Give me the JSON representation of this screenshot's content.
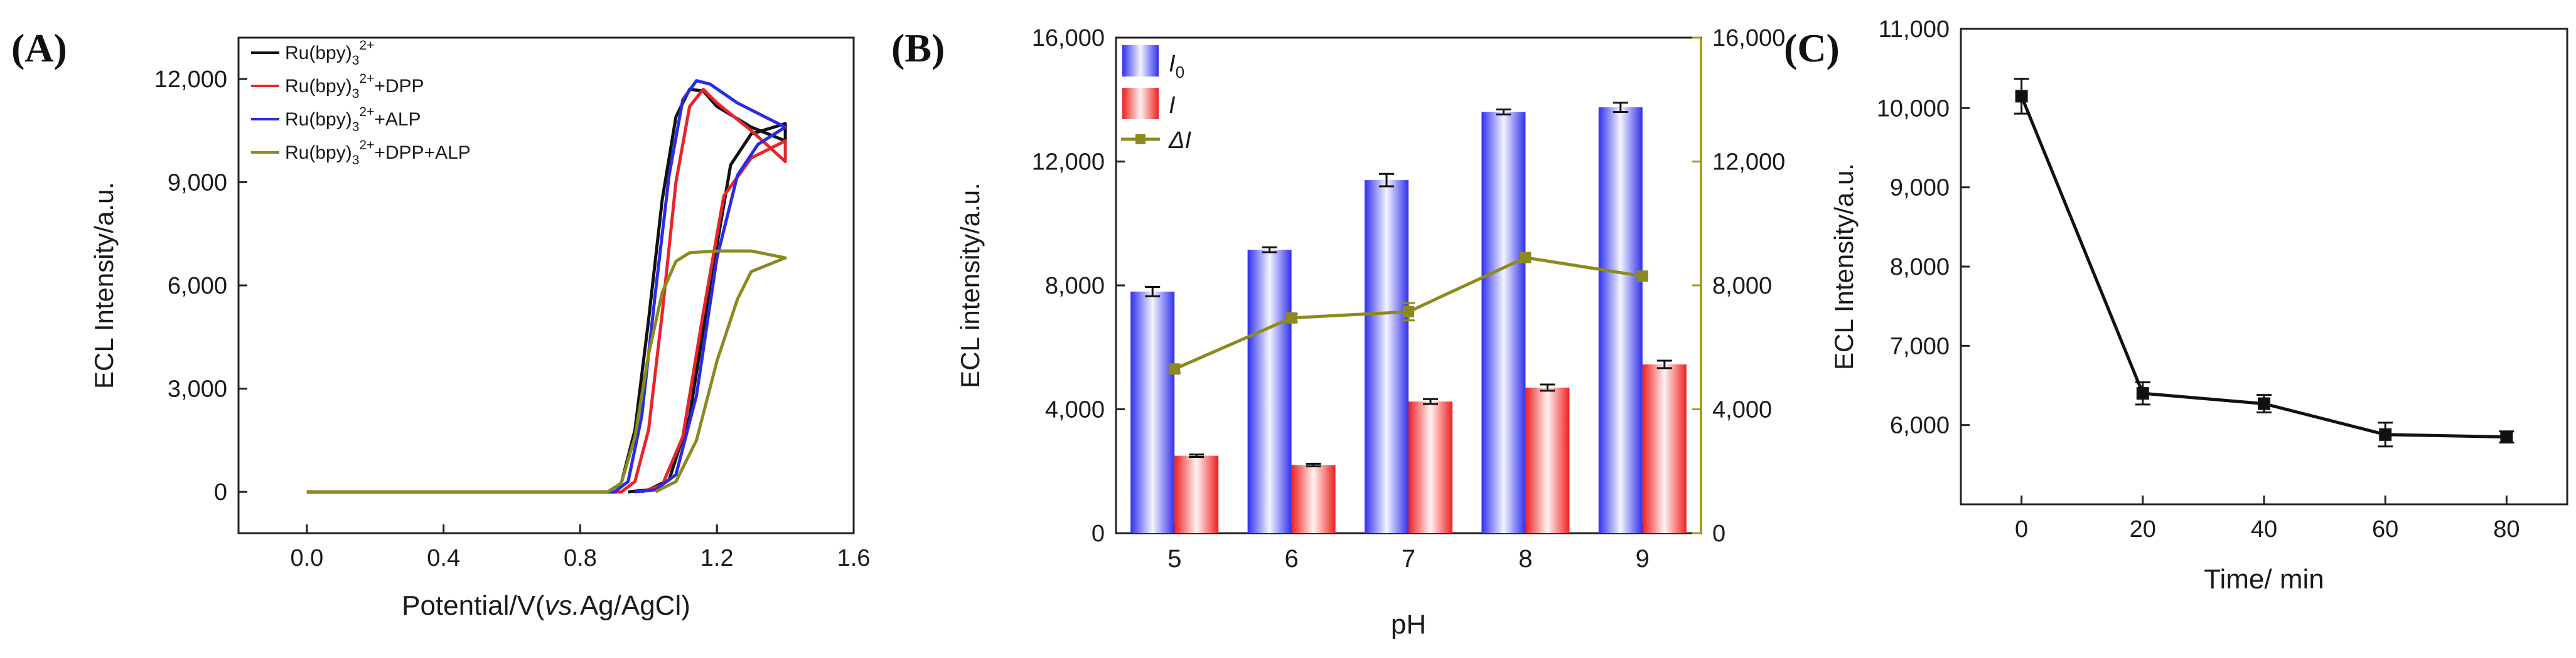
{
  "panels": {
    "a": {
      "label": "(A)",
      "xlabel_prefix": "Potential/V(",
      "xlabel_italic": "vs.",
      "xlabel_suffix": "Ag/AgCl)",
      "ylabel": "ECL Intensity/a.u.",
      "x_ticks": [
        "0.0",
        "0.4",
        "0.8",
        "1.2",
        "1.6"
      ],
      "y_ticks": [
        "0",
        "3,000",
        "6,000",
        "9,000",
        "12,000"
      ],
      "legend": [
        {
          "base": "Ru(bpy)",
          "sub": "3",
          "sup": "2+",
          "suffix": ""
        },
        {
          "base": "Ru(bpy)",
          "sub": "3",
          "sup": "2+",
          "suffix": "+DPP"
        },
        {
          "base": "Ru(bpy)",
          "sub": "3",
          "sup": "2+",
          "suffix": "+ALP"
        },
        {
          "base": "Ru(bpy)",
          "sub": "3",
          "sup": "2+",
          "suffix": "+DPP+ALP"
        }
      ]
    },
    "b": {
      "label": "(B)",
      "xlabel": "pH",
      "ylabel": "ECL intensity/a.u.",
      "x_ticks": [
        "5",
        "6",
        "7",
        "8",
        "9"
      ],
      "y_ticks": [
        "0",
        "4,000",
        "8,000",
        "12,000",
        "16,000"
      ],
      "y2_ticks": [
        "0",
        "4,000",
        "8,000",
        "12,000",
        "16,000"
      ],
      "legend": [
        {
          "text": "I",
          "sub": "0"
        },
        {
          "text": "I",
          "sub": ""
        },
        {
          "text": "ΔI",
          "sub": ""
        }
      ]
    },
    "c": {
      "label": "(C)",
      "xlabel": "Time/ min",
      "ylabel": "ECL Intensity/a.u.",
      "x_ticks": [
        "0",
        "20",
        "40",
        "60",
        "80"
      ],
      "y_ticks": [
        "6,000",
        "7,000",
        "8,000",
        "9,000",
        "10,000",
        "11,000"
      ]
    }
  },
  "colors": {
    "black": "#111111",
    "red": "#e8242a",
    "blue": "#2a2ae8",
    "olive": "#8c8a1e",
    "right_axis": "#a89a1e"
  },
  "chart_data": [
    {
      "type": "line",
      "title": "(A)",
      "xlabel": "Potential/V(vs.Ag/AgCl)",
      "ylabel": "ECL Intensity/a.u.",
      "xlim": [
        -0.2,
        1.6
      ],
      "ylim": [
        -1200,
        13200
      ],
      "series": [
        {
          "name": "Ru(bpy)3 2+",
          "color": "#111111",
          "forward": [
            [
              0.0,
              0
            ],
            [
              0.88,
              0
            ],
            [
              0.92,
              250
            ],
            [
              0.96,
              1800
            ],
            [
              1.0,
              5000
            ],
            [
              1.04,
              8500
            ],
            [
              1.08,
              10900
            ],
            [
              1.12,
              11700
            ],
            [
              1.16,
              11650
            ],
            [
              1.2,
              11200
            ],
            [
              1.3,
              10600
            ],
            [
              1.4,
              10200
            ]
          ],
          "reverse": [
            [
              1.4,
              10700
            ],
            [
              1.3,
              10400
            ],
            [
              1.24,
              9500
            ],
            [
              1.18,
              6000
            ],
            [
              1.12,
              2200
            ],
            [
              1.06,
              350
            ],
            [
              1.0,
              60
            ],
            [
              0.94,
              0
            ]
          ]
        },
        {
          "name": "Ru(bpy)3 2+ + DPP",
          "color": "#e8242a",
          "forward": [
            [
              0.0,
              0
            ],
            [
              0.92,
              0
            ],
            [
              0.96,
              300
            ],
            [
              1.0,
              1800
            ],
            [
              1.04,
              5200
            ],
            [
              1.08,
              9000
            ],
            [
              1.12,
              11200
            ],
            [
              1.16,
              11700
            ],
            [
              1.2,
              11300
            ],
            [
              1.3,
              10500
            ],
            [
              1.4,
              9600
            ]
          ],
          "reverse": [
            [
              1.4,
              10200
            ],
            [
              1.3,
              9700
            ],
            [
              1.22,
              8600
            ],
            [
              1.16,
              5200
            ],
            [
              1.1,
              1600
            ],
            [
              1.04,
              200
            ],
            [
              0.98,
              0
            ]
          ]
        },
        {
          "name": "Ru(bpy)3 2+ + ALP",
          "color": "#2a2ae8",
          "forward": [
            [
              0.0,
              0
            ],
            [
              0.9,
              0
            ],
            [
              0.94,
              300
            ],
            [
              0.98,
              2200
            ],
            [
              1.02,
              5800
            ],
            [
              1.06,
              9200
            ],
            [
              1.1,
              11400
            ],
            [
              1.14,
              11950
            ],
            [
              1.18,
              11850
            ],
            [
              1.26,
              11300
            ],
            [
              1.34,
              10900
            ],
            [
              1.4,
              10600
            ]
          ],
          "reverse": [
            [
              1.4,
              10600
            ],
            [
              1.32,
              10100
            ],
            [
              1.26,
              9200
            ],
            [
              1.2,
              6800
            ],
            [
              1.14,
              2800
            ],
            [
              1.08,
              500
            ],
            [
              1.02,
              60
            ],
            [
              0.96,
              0
            ]
          ]
        },
        {
          "name": "Ru(bpy)3 2+ + DPP + ALP",
          "color": "#8c8a1e",
          "forward": [
            [
              0.0,
              0
            ],
            [
              0.88,
              0
            ],
            [
              0.92,
              250
            ],
            [
              0.96,
              1600
            ],
            [
              1.0,
              4000
            ],
            [
              1.04,
              5800
            ],
            [
              1.08,
              6700
            ],
            [
              1.12,
              6950
            ],
            [
              1.2,
              7000
            ],
            [
              1.3,
              7000
            ],
            [
              1.4,
              6800
            ]
          ],
          "reverse": [
            [
              1.4,
              6800
            ],
            [
              1.3,
              6400
            ],
            [
              1.26,
              5600
            ],
            [
              1.2,
              3800
            ],
            [
              1.14,
              1500
            ],
            [
              1.08,
              300
            ],
            [
              1.02,
              0
            ]
          ]
        }
      ]
    },
    {
      "type": "bar",
      "title": "(B)",
      "xlabel": "pH",
      "ylabel": "ECL intensity/a.u.",
      "categories": [
        "5",
        "6",
        "7",
        "8",
        "9"
      ],
      "ylim": [
        0,
        16000
      ],
      "y2lim": [
        0,
        16000
      ],
      "series": [
        {
          "name": "I0",
          "type": "bar",
          "values": [
            7800,
            9150,
            11400,
            13600,
            13750
          ],
          "errors": [
            150,
            80,
            200,
            80,
            150
          ]
        },
        {
          "name": "I",
          "type": "bar",
          "values": [
            2500,
            2200,
            4250,
            4700,
            5450
          ],
          "errors": [
            40,
            40,
            80,
            100,
            120
          ]
        },
        {
          "name": "ΔI",
          "type": "line",
          "axis": "right",
          "values": [
            5300,
            6950,
            7150,
            8900,
            8300
          ],
          "errors": [
            120,
            130,
            280,
            0,
            0
          ]
        }
      ]
    },
    {
      "type": "line",
      "title": "(C)",
      "xlabel": "Time/ min",
      "ylabel": "ECL Intensity/a.u.",
      "xlim": [
        -10,
        90
      ],
      "ylim": [
        5000,
        11000
      ],
      "series": [
        {
          "name": "ECL intensity",
          "x": [
            0,
            20,
            40,
            60,
            80
          ],
          "values": [
            10150,
            6400,
            6270,
            5880,
            5850
          ],
          "errors": [
            220,
            140,
            110,
            150,
            70
          ]
        }
      ]
    }
  ]
}
